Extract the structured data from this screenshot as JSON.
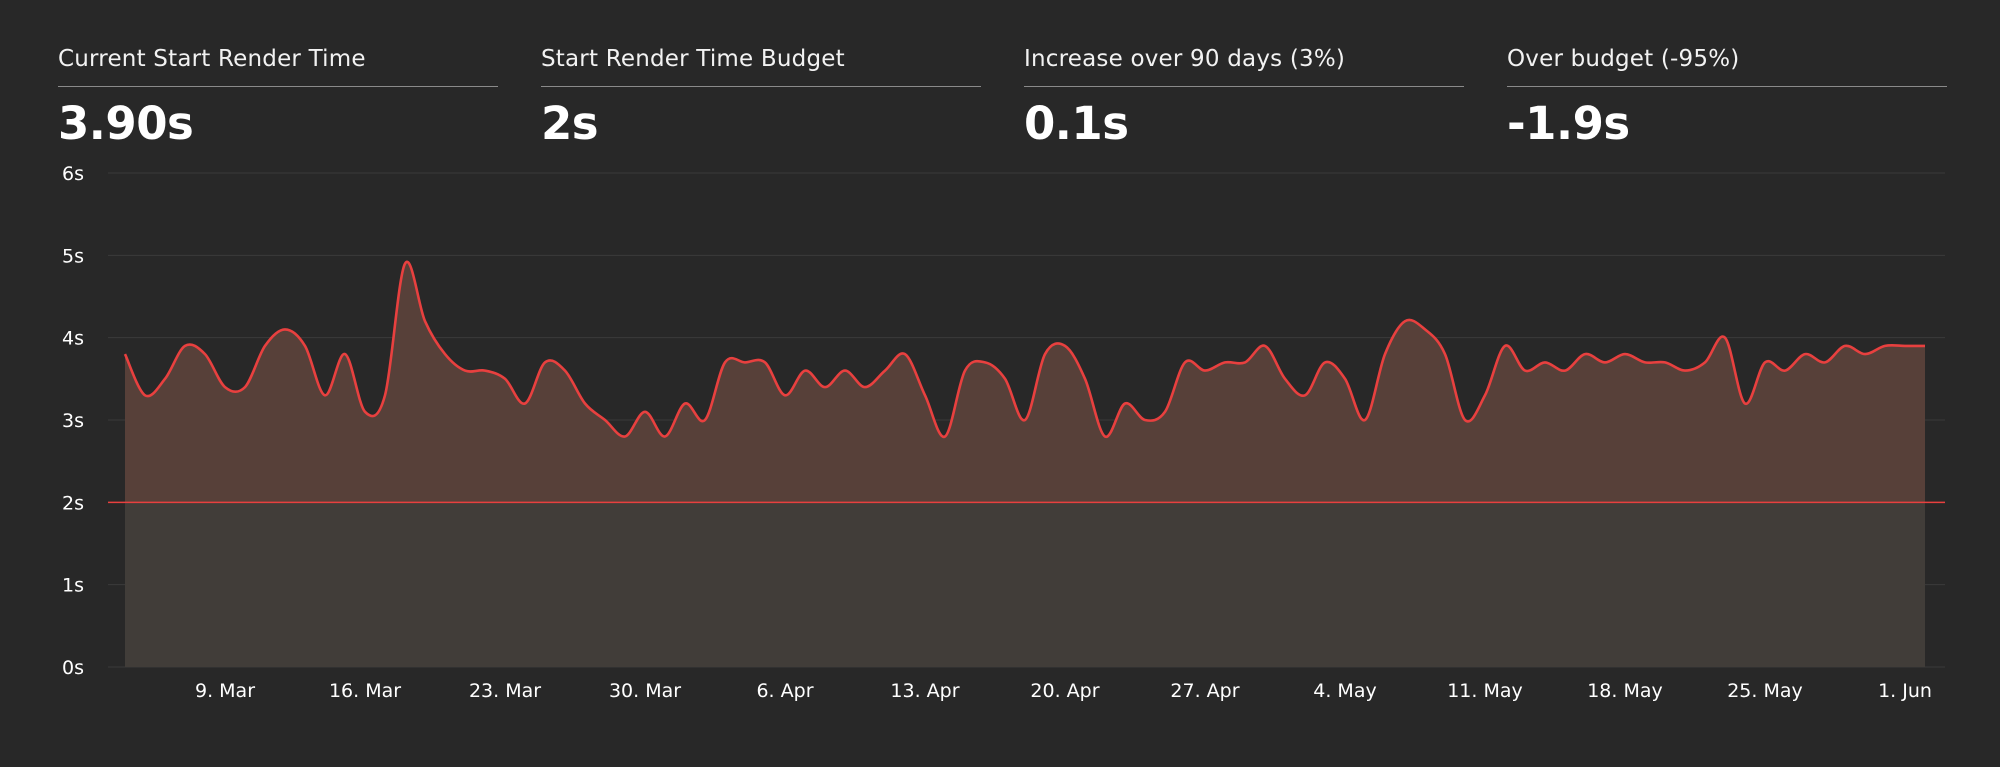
{
  "stats": [
    {
      "label": "Current Start Render Time",
      "value": "3.90s"
    },
    {
      "label": "Start Render Time Budget",
      "value": "2s"
    },
    {
      "label": "Increase over 90 days (3%)",
      "value": "0.1s"
    },
    {
      "label": "Over budget (-95%)",
      "value": "-1.9s"
    }
  ],
  "colors": {
    "background": "#282828",
    "line": "#e8403f",
    "fill_over_budget": "#574039",
    "fill_under_budget": "#413d39",
    "gridline": "#3a3a3a",
    "budget_line": "#e8403f"
  },
  "chart_data": {
    "type": "area",
    "title": "",
    "xlabel": "",
    "ylabel": "",
    "ylim": [
      0,
      6
    ],
    "yticks": [
      0,
      1,
      2,
      3,
      4,
      5,
      6
    ],
    "ytick_labels": [
      "0s",
      "1s",
      "2s",
      "3s",
      "4s",
      "5s",
      "6s"
    ],
    "xlim": [
      "2024-03-04",
      "2024-06-02"
    ],
    "xticks": [
      "2024-03-09",
      "2024-03-16",
      "2024-03-23",
      "2024-03-30",
      "2024-04-06",
      "2024-04-13",
      "2024-04-20",
      "2024-04-27",
      "2024-05-04",
      "2024-05-11",
      "2024-05-18",
      "2024-05-25",
      "2024-06-01"
    ],
    "xtick_labels": [
      "9. Mar",
      "16. Mar",
      "23. Mar",
      "30. Mar",
      "6. Apr",
      "13. Apr",
      "20. Apr",
      "27. Apr",
      "4. May",
      "11. May",
      "18. May",
      "25. May",
      "1. Jun"
    ],
    "grid": true,
    "legend": "none",
    "budget": 2,
    "series": [
      {
        "x": [
          "2024-03-04",
          "2024-03-05",
          "2024-03-06",
          "2024-03-07",
          "2024-03-08",
          "2024-03-09",
          "2024-03-10",
          "2024-03-11",
          "2024-03-12",
          "2024-03-13",
          "2024-03-14",
          "2024-03-15",
          "2024-03-16",
          "2024-03-17",
          "2024-03-18",
          "2024-03-19",
          "2024-03-20",
          "2024-03-21",
          "2024-03-22",
          "2024-03-23",
          "2024-03-24",
          "2024-03-25",
          "2024-03-26",
          "2024-03-27",
          "2024-03-28",
          "2024-03-29",
          "2024-03-30",
          "2024-03-31",
          "2024-04-01",
          "2024-04-02",
          "2024-04-03",
          "2024-04-04",
          "2024-04-05",
          "2024-04-06",
          "2024-04-07",
          "2024-04-08",
          "2024-04-09",
          "2024-04-10",
          "2024-04-11",
          "2024-04-12",
          "2024-04-13",
          "2024-04-14",
          "2024-04-15",
          "2024-04-16",
          "2024-04-17",
          "2024-04-18",
          "2024-04-19",
          "2024-04-20",
          "2024-04-21",
          "2024-04-22",
          "2024-04-23",
          "2024-04-24",
          "2024-04-25",
          "2024-04-26",
          "2024-04-27",
          "2024-04-28",
          "2024-04-29",
          "2024-04-30",
          "2024-05-01",
          "2024-05-02",
          "2024-05-03",
          "2024-05-04",
          "2024-05-05",
          "2024-05-06",
          "2024-05-07",
          "2024-05-08",
          "2024-05-09",
          "2024-05-10",
          "2024-05-11",
          "2024-05-12",
          "2024-05-13",
          "2024-05-14",
          "2024-05-15",
          "2024-05-16",
          "2024-05-17",
          "2024-05-18",
          "2024-05-19",
          "2024-05-20",
          "2024-05-21",
          "2024-05-22",
          "2024-05-23",
          "2024-05-24",
          "2024-05-25",
          "2024-05-26",
          "2024-05-27",
          "2024-05-28",
          "2024-05-29",
          "2024-05-30",
          "2024-05-31",
          "2024-06-01",
          "2024-06-02"
        ],
        "values": [
          3.8,
          3.3,
          3.5,
          3.9,
          3.8,
          3.4,
          3.4,
          3.9,
          4.1,
          3.9,
          3.3,
          3.8,
          3.1,
          3.3,
          4.9,
          4.2,
          3.8,
          3.6,
          3.6,
          3.5,
          3.2,
          3.7,
          3.6,
          3.2,
          3.0,
          2.8,
          3.1,
          2.8,
          3.2,
          3.0,
          3.7,
          3.7,
          3.7,
          3.3,
          3.6,
          3.4,
          3.6,
          3.4,
          3.6,
          3.8,
          3.3,
          2.8,
          3.6,
          3.7,
          3.5,
          3.0,
          3.8,
          3.9,
          3.5,
          2.8,
          3.2,
          3.0,
          3.1,
          3.7,
          3.6,
          3.7,
          3.7,
          3.9,
          3.5,
          3.3,
          3.7,
          3.5,
          3.0,
          3.8,
          4.2,
          4.1,
          3.8,
          3.0,
          3.3,
          3.9,
          3.6,
          3.7,
          3.6,
          3.8,
          3.7,
          3.8,
          3.7,
          3.7,
          3.6,
          3.7,
          4.0,
          3.2,
          3.7,
          3.6,
          3.8,
          3.7,
          3.9,
          3.8,
          3.9,
          3.9,
          3.9
        ]
      }
    ]
  }
}
